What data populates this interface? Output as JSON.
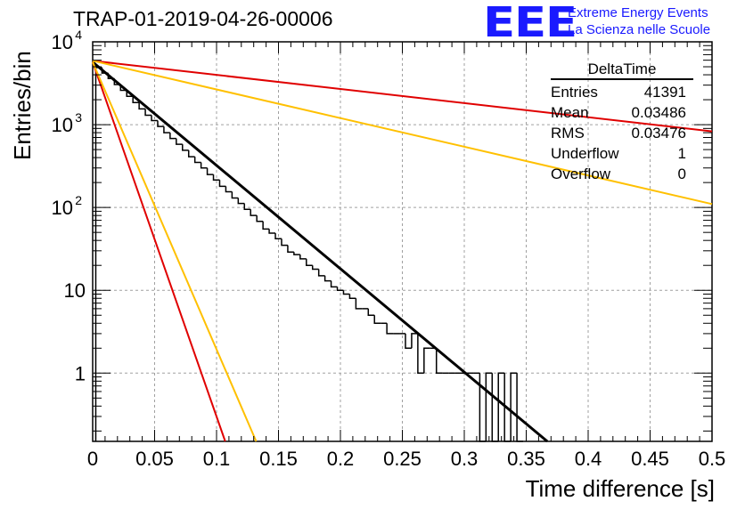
{
  "title": "TRAP-01-2019-04-26-00006",
  "logo": {
    "mark": "EEE",
    "line1": "Extreme Energy Events",
    "line2": "La Scienza nelle Scuole",
    "color": "#1a1aff"
  },
  "stats_box": {
    "header": "DeltaTime",
    "rows": [
      {
        "label": "Entries",
        "value": "41391"
      },
      {
        "label": "Mean",
        "value": "0.03486"
      },
      {
        "label": "RMS",
        "value": "0.03476"
      },
      {
        "label": "Underflow",
        "value": "1"
      },
      {
        "label": "Overflow",
        "value": "0"
      }
    ]
  },
  "chart_data": {
    "type": "histogram",
    "title": "TRAP-01-2019-04-26-00006",
    "xlabel": "Time difference [s]",
    "ylabel": "Entries/bin",
    "xlim": [
      0,
      0.5
    ],
    "ylim": [
      0.15,
      10000
    ],
    "y_scale": "log",
    "grid": true,
    "x_ticks": [
      "0",
      "0.05",
      "0.1",
      "0.15",
      "0.2",
      "0.25",
      "0.3",
      "0.35",
      "0.4",
      "0.45",
      "0.5"
    ],
    "y_ticks": [
      {
        "value": 10000,
        "label": "10",
        "exp": "4"
      },
      {
        "value": 1000,
        "label": "10",
        "exp": "3"
      },
      {
        "value": 100,
        "label": "10",
        "exp": "2"
      },
      {
        "value": 10,
        "label": "10",
        "exp": ""
      },
      {
        "value": 1,
        "label": "1",
        "exp": ""
      }
    ],
    "histogram": {
      "bin_width": 0.005,
      "color": "#000000",
      "bins": [
        {
          "x": 0.005,
          "y": 4900
        },
        {
          "x": 0.01,
          "y": 4200
        },
        {
          "x": 0.015,
          "y": 3600
        },
        {
          "x": 0.02,
          "y": 3050
        },
        {
          "x": 0.025,
          "y": 2600
        },
        {
          "x": 0.03,
          "y": 2200
        },
        {
          "x": 0.035,
          "y": 1850
        },
        {
          "x": 0.04,
          "y": 1550
        },
        {
          "x": 0.045,
          "y": 1300
        },
        {
          "x": 0.05,
          "y": 1120
        },
        {
          "x": 0.055,
          "y": 950
        },
        {
          "x": 0.06,
          "y": 800
        },
        {
          "x": 0.065,
          "y": 680
        },
        {
          "x": 0.07,
          "y": 580
        },
        {
          "x": 0.075,
          "y": 490
        },
        {
          "x": 0.08,
          "y": 410
        },
        {
          "x": 0.085,
          "y": 350
        },
        {
          "x": 0.09,
          "y": 300
        },
        {
          "x": 0.095,
          "y": 250
        },
        {
          "x": 0.1,
          "y": 215
        },
        {
          "x": 0.105,
          "y": 180
        },
        {
          "x": 0.11,
          "y": 155
        },
        {
          "x": 0.115,
          "y": 130
        },
        {
          "x": 0.12,
          "y": 112
        },
        {
          "x": 0.125,
          "y": 95
        },
        {
          "x": 0.13,
          "y": 80
        },
        {
          "x": 0.135,
          "y": 68
        },
        {
          "x": 0.14,
          "y": 55
        },
        {
          "x": 0.145,
          "y": 49
        },
        {
          "x": 0.15,
          "y": 42
        },
        {
          "x": 0.155,
          "y": 35
        },
        {
          "x": 0.16,
          "y": 29
        },
        {
          "x": 0.165,
          "y": 27
        },
        {
          "x": 0.17,
          "y": 24
        },
        {
          "x": 0.175,
          "y": 20
        },
        {
          "x": 0.18,
          "y": 18
        },
        {
          "x": 0.185,
          "y": 15
        },
        {
          "x": 0.19,
          "y": 13
        },
        {
          "x": 0.195,
          "y": 11
        },
        {
          "x": 0.2,
          "y": 10
        },
        {
          "x": 0.205,
          "y": 9
        },
        {
          "x": 0.21,
          "y": 8
        },
        {
          "x": 0.215,
          "y": 6
        },
        {
          "x": 0.22,
          "y": 6
        },
        {
          "x": 0.225,
          "y": 5
        },
        {
          "x": 0.23,
          "y": 4
        },
        {
          "x": 0.235,
          "y": 4
        },
        {
          "x": 0.24,
          "y": 3
        },
        {
          "x": 0.245,
          "y": 3
        },
        {
          "x": 0.25,
          "y": 3
        },
        {
          "x": 0.255,
          "y": 2
        },
        {
          "x": 0.26,
          "y": 3
        },
        {
          "x": 0.265,
          "y": 1
        },
        {
          "x": 0.27,
          "y": 2
        },
        {
          "x": 0.275,
          "y": 2
        },
        {
          "x": 0.28,
          "y": 1
        },
        {
          "x": 0.285,
          "y": 1
        },
        {
          "x": 0.29,
          "y": 1
        },
        {
          "x": 0.295,
          "y": 1
        },
        {
          "x": 0.3,
          "y": 1
        },
        {
          "x": 0.305,
          "y": 1
        },
        {
          "x": 0.31,
          "y": 1
        },
        {
          "x": 0.315,
          "y": 0
        },
        {
          "x": 0.32,
          "y": 1
        },
        {
          "x": 0.325,
          "y": 0
        },
        {
          "x": 0.33,
          "y": 1
        },
        {
          "x": 0.335,
          "y": 0
        },
        {
          "x": 0.34,
          "y": 1
        },
        {
          "x": 0.345,
          "y": 0
        }
      ]
    },
    "fit_lines": [
      {
        "color": "#000000",
        "x": [
          0,
          0.367
        ],
        "y": [
          5700,
          0.15
        ]
      },
      {
        "color": "#e00000",
        "x": [
          0,
          0.5
        ],
        "y": [
          5900,
          830
        ]
      },
      {
        "color": "#ffc000",
        "x": [
          0,
          0.5
        ],
        "y": [
          5900,
          110
        ]
      },
      {
        "color": "#e00000",
        "x": [
          0,
          0.107
        ],
        "y": [
          5700,
          0.15
        ]
      },
      {
        "color": "#ffc000",
        "x": [
          0,
          0.132
        ],
        "y": [
          5700,
          0.15
        ]
      }
    ]
  }
}
